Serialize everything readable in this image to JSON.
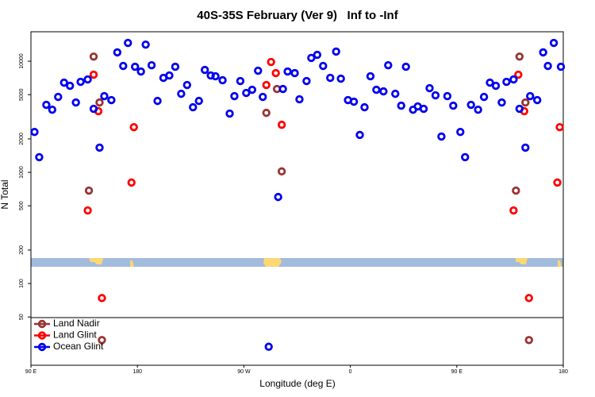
{
  "chart_data": {
    "type": "scatter",
    "title": "40S-35S February (Ver 9)   Inf to -Inf",
    "x_label": "Longitude (deg E)",
    "y_label": "N Total",
    "log_y": true,
    "legend": "lower left",
    "xlim": [
      90,
      540
    ],
    "ylim": [
      18.4,
      18400
    ],
    "xticks": [
      {
        "value": 90,
        "label": "90 E"
      },
      180,
      {
        "value": 270,
        "label": "90 W"
      },
      {
        "value": 360,
        "label": "0"
      },
      {
        "value": 450,
        "label": "90 E"
      },
      {
        "value": 540,
        "label": "180"
      }
    ],
    "yticks": [
      50,
      100,
      200,
      500,
      1000,
      2000,
      5000,
      10000
    ],
    "series": [
      {
        "name": "Land Nadir",
        "color": "#993333",
        "x": [
          139,
          143,
          148,
          150,
          289,
          298,
          302,
          500,
          503,
          508,
          511
        ],
        "values": [
          685,
          11000,
          4250,
          31,
          3430,
          5620,
          1020,
          685,
          11000,
          4250,
          31
        ]
      },
      {
        "name": "Land Glint",
        "color": "#ff0000",
        "x": [
          138,
          143,
          147,
          150,
          175,
          177,
          289,
          293,
          297,
          302,
          498,
          502,
          507,
          511,
          535,
          537
        ],
        "values": [
          454,
          7560,
          3550,
          74,
          810,
          2550,
          6110,
          9840,
          7810,
          2680,
          454,
          7560,
          3550,
          74,
          810,
          2550
        ]
      },
      {
        "name": "Ocean Glint",
        "color": "#0000ee",
        "x": [
          93,
          97,
          103,
          108,
          113,
          118,
          123,
          128,
          132,
          138,
          143,
          148,
          152,
          158,
          163,
          168,
          172,
          178,
          183,
          187,
          192,
          197,
          202,
          207,
          212,
          217,
          222,
          227,
          232,
          237,
          242,
          246,
          252,
          258,
          262,
          267,
          272,
          277,
          282,
          286,
          291,
          299,
          303,
          307,
          313,
          317,
          323,
          327,
          332,
          337,
          343,
          348,
          352,
          358,
          363,
          368,
          372,
          377,
          382,
          388,
          392,
          398,
          403,
          407,
          413,
          417,
          422,
          427,
          432,
          437,
          442,
          447,
          453,
          457,
          462,
          468,
          473,
          478,
          483,
          488,
          492,
          498,
          503,
          508,
          512,
          518,
          523,
          527,
          532,
          538
        ],
        "values": [
          2310,
          1370,
          4050,
          3660,
          4770,
          6410,
          6010,
          4250,
          6520,
          6850,
          3730,
          1670,
          4850,
          4470,
          12000,
          9060,
          14600,
          8910,
          8070,
          14100,
          9200,
          4390,
          7080,
          7440,
          8910,
          5090,
          6110,
          3850,
          4390,
          8340,
          7440,
          7320,
          6740,
          3380,
          4850,
          6630,
          5180,
          5530,
          8210,
          4770,
          27,
          600,
          5620,
          8070,
          7810,
          4540,
          6630,
          10700,
          11400,
          9060,
          7080,
          12200,
          6960,
          4470,
          4320,
          2170,
          3850,
          7320,
          5530,
          5350,
          9200,
          5090,
          3980,
          8910,
          3660,
          3920,
          3730,
          5720,
          4930,
          2100,
          4850,
          3980,
          2310,
          1370,
          4050,
          3660,
          4770,
          6410,
          6010,
          4250,
          6520,
          6850,
          3730,
          1670,
          4850,
          4470,
          12000,
          9060,
          14600,
          8910
        ]
      }
    ]
  }
}
